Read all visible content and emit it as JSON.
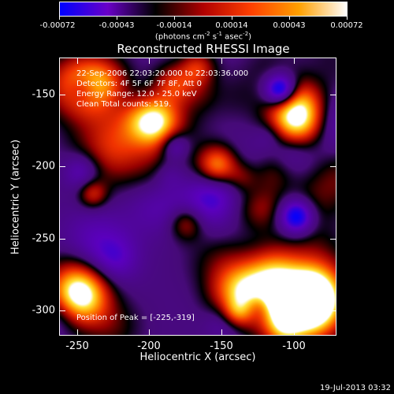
{
  "colorbar": {
    "ticks": [
      "-0.00072",
      "-0.00043",
      "-0.00014",
      "0.00014",
      "0.00043",
      "0.00072"
    ],
    "units": "(photons cm",
    "units_exp1": "-2",
    "units_mid": " s",
    "units_exp2": "-1",
    "units_mid2": " asec",
    "units_exp3": "-2",
    "units_end": ")",
    "gradient_colors": [
      "#0000ff",
      "#6a00c8",
      "#000000",
      "#b00000",
      "#ff4000",
      "#ffa000",
      "#ffffff"
    ]
  },
  "title": "Reconstructed RHESSI Image",
  "info": {
    "time": "22-Sep-2006 22:03:20.000 to 22:03:36.000",
    "detectors": "Detectors: 4F 5F 6F 7F 8F, Att 0",
    "energy": "Energy Range: 12.0 - 25.0 keV",
    "clean": "Clean    Total counts: 519.",
    "peak": "Position of Peak = [-225,-319]"
  },
  "axes": {
    "x_title": "Heliocentric X (arcsec)",
    "y_title": "Heliocentric Y (arcsec)",
    "x_ticks": [
      "-250",
      "-200",
      "-150",
      "-100"
    ],
    "y_ticks": [
      "-150",
      "-200",
      "-250",
      "-300"
    ]
  },
  "timestamp": "19-Jul-2013 03:32"
}
